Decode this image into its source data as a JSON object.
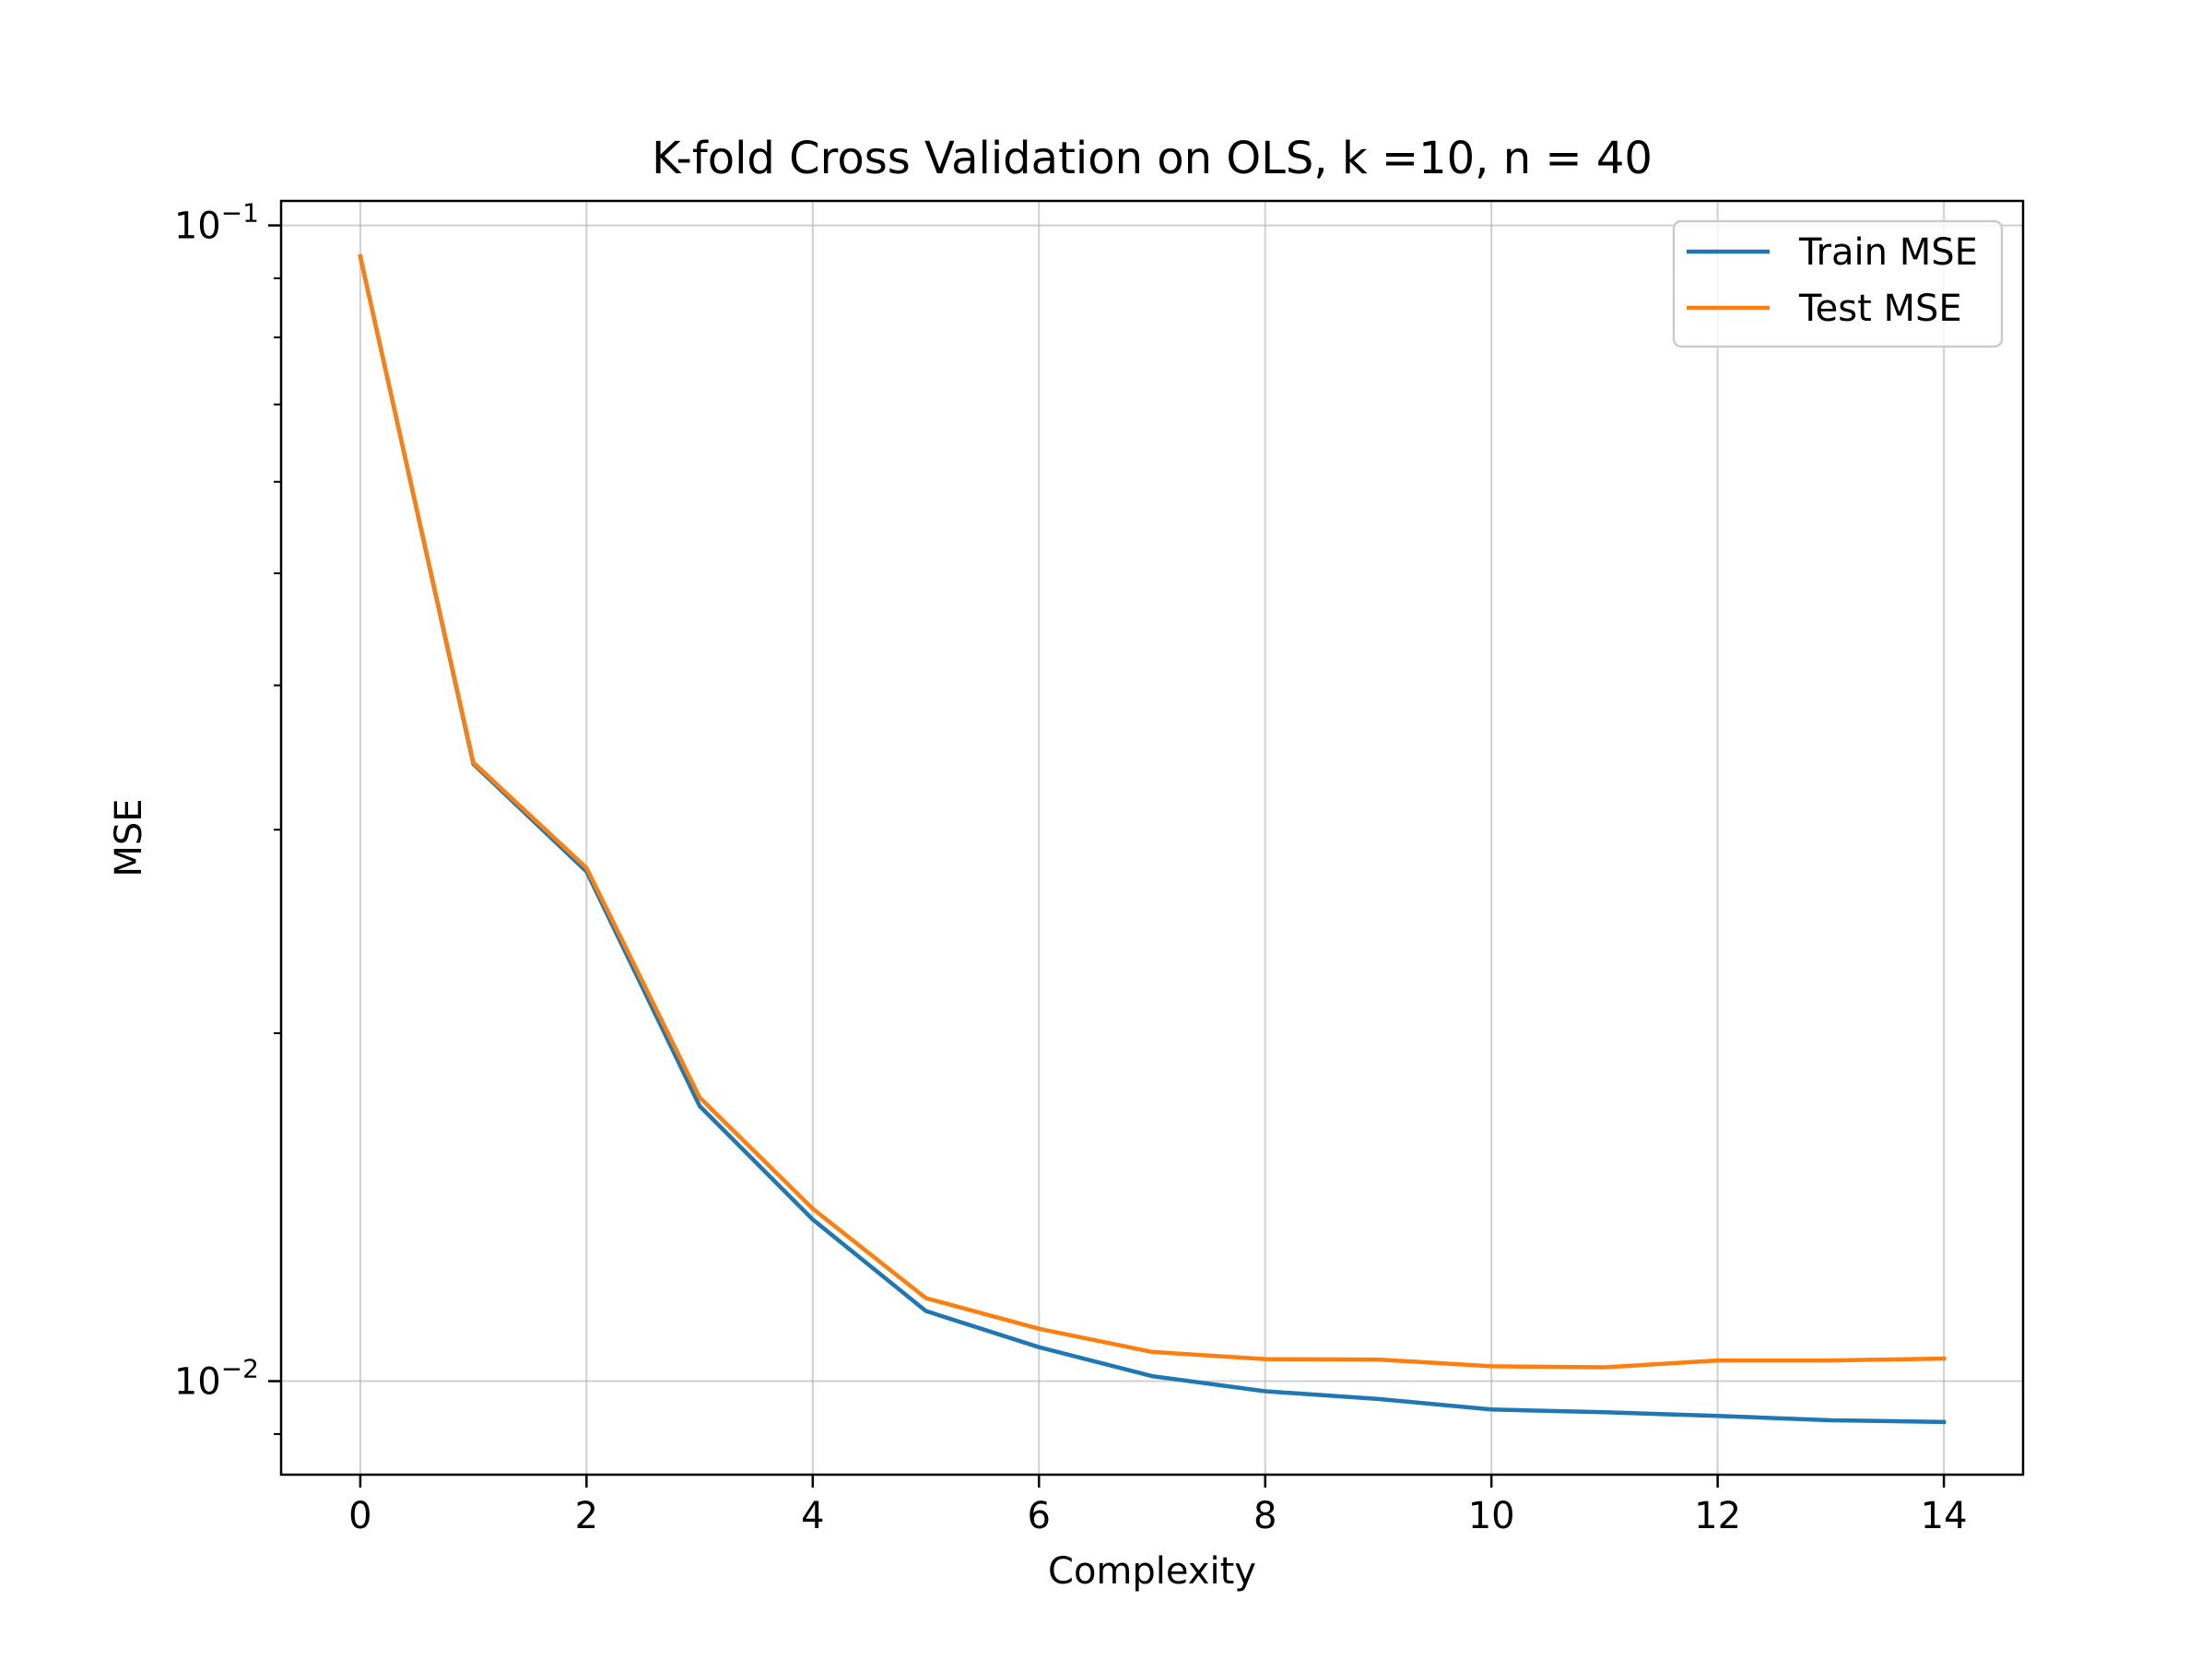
{
  "chart_data": {
    "type": "line",
    "title": "K-fold Cross Validation on OLS, k =10, n = 40",
    "xlabel": "Complexity",
    "ylabel": "MSE",
    "x": [
      0,
      1,
      2,
      3,
      4,
      5,
      6,
      7,
      8,
      9,
      10,
      11,
      12,
      13,
      14
    ],
    "xlim": [
      -0.7,
      14.7
    ],
    "ylim": [
      0.0083,
      0.105
    ],
    "yscale": "log",
    "xticks": [
      0,
      2,
      4,
      6,
      8,
      10,
      12,
      14
    ],
    "xtick_labels": [
      "0",
      "2",
      "4",
      "6",
      "8",
      "10",
      "12",
      "14"
    ],
    "yticks": [
      0.1,
      0.01
    ],
    "ytick_labels": [
      {
        "base": "10",
        "exp": "−1"
      },
      {
        "base": "10",
        "exp": "−2"
      }
    ],
    "grid": true,
    "legend_position": "top-right",
    "series": [
      {
        "name": "Train MSE",
        "color": "#1f77b4",
        "values": [
          0.094,
          0.0342,
          0.0276,
          0.0173,
          0.0138,
          0.0115,
          0.0107,
          0.0101,
          0.0098,
          0.00965,
          0.00945,
          0.0094,
          0.00933,
          0.00925,
          0.00922
        ]
      },
      {
        "name": "Test MSE",
        "color": "#ff7f0e",
        "values": [
          0.094,
          0.0343,
          0.0278,
          0.0176,
          0.0141,
          0.0118,
          0.0111,
          0.0106,
          0.01045,
          0.01044,
          0.0103,
          0.01028,
          0.01042,
          0.01042,
          0.01046
        ]
      }
    ]
  }
}
